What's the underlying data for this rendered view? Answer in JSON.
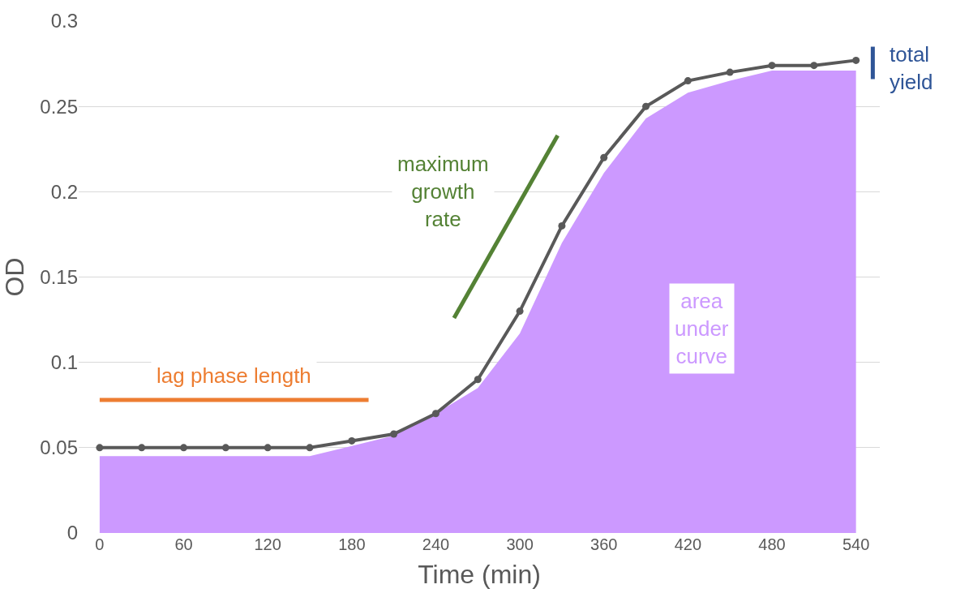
{
  "chart_data": {
    "type": "line",
    "xlabel": "Time (min)",
    "ylabel": "OD",
    "x": [
      0,
      30,
      60,
      90,
      120,
      150,
      180,
      210,
      240,
      270,
      300,
      330,
      360,
      390,
      420,
      450,
      480,
      510,
      540
    ],
    "series": [
      {
        "type": "area",
        "color": "#cc99ff",
        "marker": "none",
        "values": [
          0.045,
          0.045,
          0.045,
          0.045,
          0.045,
          0.045,
          0.051,
          0.057,
          0.07,
          0.085,
          0.117,
          0.17,
          0.211,
          0.243,
          0.258,
          0.265,
          0.271,
          0.271,
          0.271
        ]
      },
      {
        "color": "#595959",
        "marker": "circle",
        "values": [
          0.05,
          0.05,
          0.05,
          0.05,
          0.05,
          0.05,
          0.054,
          0.058,
          0.07,
          0.09,
          0.13,
          0.18,
          0.22,
          0.25,
          0.265,
          0.27,
          0.274,
          0.274,
          0.277
        ]
      },
      {
        "color": "#ed7d31",
        "marker": "none",
        "x": [
          0,
          192
        ],
        "values": [
          0.078,
          0.078
        ]
      },
      {
        "color": "#548235",
        "marker": "none",
        "x": [
          253,
          327
        ],
        "values": [
          0.126,
          0.233
        ]
      },
      {
        "color": "#2f5597",
        "marker": "none",
        "x": [
          552,
          552
        ],
        "values": [
          0.266,
          0.285
        ]
      }
    ],
    "annotations": [
      "lag phase length",
      "maximum\ngrowth\nrate",
      "area\nunder\ncurve",
      "total\nyield"
    ],
    "xlim": [
      -15,
      557
    ],
    "xticks": [
      0,
      60,
      120,
      180,
      240,
      300,
      360,
      420,
      480,
      540
    ],
    "ylim": [
      0,
      0.3
    ],
    "yticks": [
      0,
      0.05,
      0.1,
      0.15,
      0.2,
      0.25,
      0.3
    ],
    "grid": "y"
  }
}
